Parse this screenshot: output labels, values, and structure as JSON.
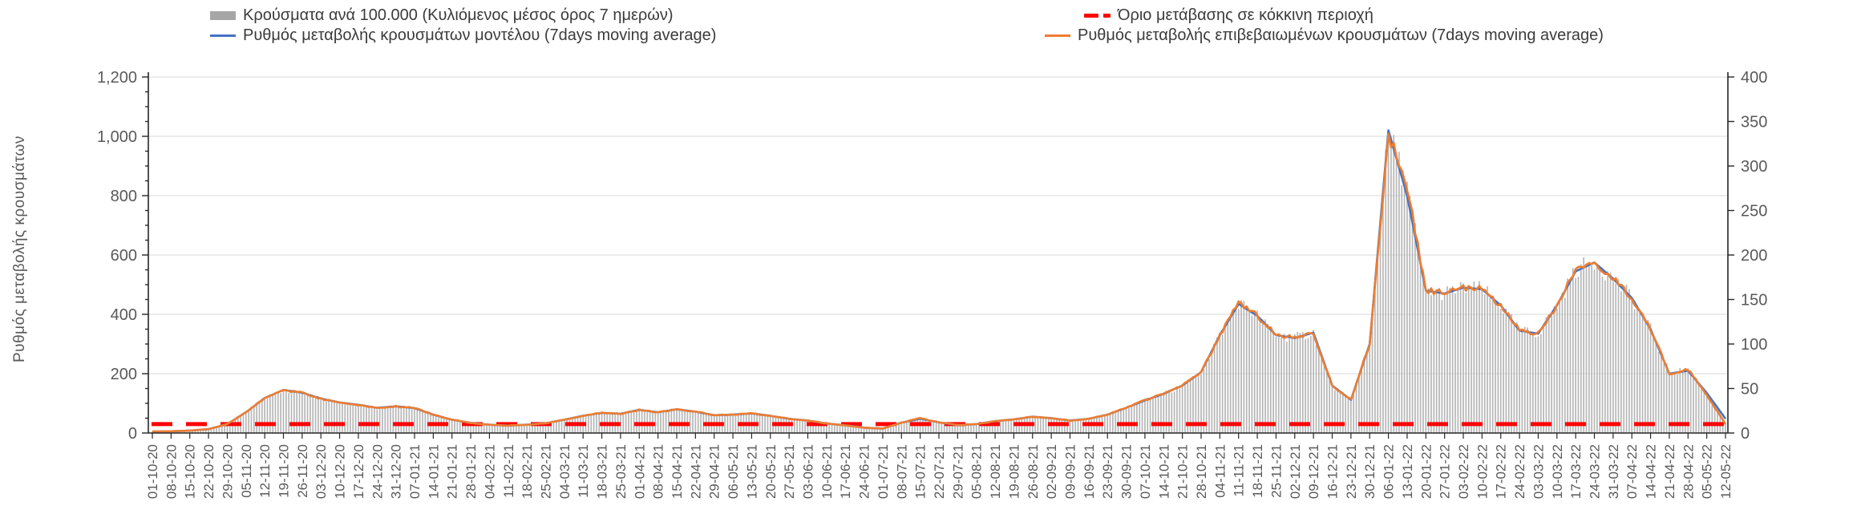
{
  "chart_data": {
    "type": "line",
    "combo": "daily bars + two 7-day moving-average lines + constant threshold line",
    "title": "",
    "grid": "horizontal",
    "legend": {
      "position": "top",
      "rows": 2,
      "columns": 2
    },
    "axes": {
      "left": {
        "title": "Ρυθμός μεταβολής κρουσμάτων",
        "min": 0,
        "max": 1200,
        "step": 200,
        "tick_labels": [
          "0",
          "200",
          "400",
          "600",
          "800",
          "1,000",
          "1,200"
        ]
      },
      "right": {
        "title": "",
        "min": 0,
        "max": 400,
        "step": 50,
        "tick_labels": [
          "0",
          "50",
          "100",
          "150",
          "200",
          "250",
          "300",
          "350",
          "400"
        ]
      },
      "x": {
        "tick_label_rotation_deg": 90,
        "interval": "weekly"
      }
    },
    "x_tick_labels": [
      "01-10-20",
      "08-10-20",
      "15-10-20",
      "22-10-20",
      "29-10-20",
      "05-11-20",
      "12-11-20",
      "19-11-20",
      "26-11-20",
      "03-12-20",
      "10-12-20",
      "17-12-20",
      "24-12-20",
      "31-12-20",
      "07-01-21",
      "14-01-21",
      "21-01-21",
      "28-01-21",
      "04-02-21",
      "11-02-21",
      "18-02-21",
      "25-02-21",
      "04-03-21",
      "11-03-21",
      "18-03-21",
      "25-03-21",
      "01-04-21",
      "08-04-21",
      "15-04-21",
      "22-04-21",
      "29-04-21",
      "06-05-21",
      "13-05-21",
      "20-05-21",
      "27-05-21",
      "03-06-21",
      "10-06-21",
      "17-06-21",
      "24-06-21",
      "01-07-21",
      "08-07-21",
      "15-07-21",
      "22-07-21",
      "29-07-21",
      "05-08-21",
      "12-08-21",
      "19-08-21",
      "26-08-21",
      "02-09-21",
      "09-09-21",
      "16-09-21",
      "23-09-21",
      "30-09-21",
      "07-10-21",
      "14-10-21",
      "21-10-21",
      "28-10-21",
      "04-11-21",
      "11-11-21",
      "18-11-21",
      "25-11-21",
      "02-12-21",
      "09-12-21",
      "16-12-21",
      "23-12-21",
      "30-12-21",
      "06-01-22",
      "13-01-22",
      "20-01-22",
      "27-01-22",
      "03-02-22",
      "10-02-22",
      "17-02-22",
      "24-02-22",
      "03-03-22",
      "10-03-22",
      "17-03-22",
      "24-03-22",
      "31-03-22",
      "07-04-22",
      "14-04-22",
      "21-04-22",
      "28-04-22",
      "05-05-22",
      "12-05-22"
    ],
    "sampling_note": "series values read from the chart at weekly x-tick resolution",
    "series": [
      {
        "name": "Κρούσματα ανά 100.000 (Κυλιόμενος μέσος όρος 7 ημερών)",
        "type": "bar",
        "axis": "right",
        "color": "#a6a6a6",
        "weekly_values": [
          2,
          2,
          3,
          4,
          10,
          23,
          39,
          48,
          45,
          39,
          34,
          32,
          28,
          30,
          28,
          21,
          15,
          11,
          9,
          8,
          9,
          11,
          15,
          19,
          23,
          22,
          26,
          23,
          27,
          24,
          20,
          21,
          22,
          19,
          16,
          14,
          11,
          9,
          6,
          5,
          12,
          17,
          12,
          9,
          10,
          13,
          15,
          18,
          17,
          14,
          16,
          21,
          28,
          37,
          44,
          53,
          68,
          110,
          147,
          132,
          110,
          107,
          113,
          53,
          37,
          100,
          337,
          277,
          160,
          157,
          163,
          162,
          143,
          115,
          112,
          143,
          183,
          193,
          173,
          152,
          117,
          67,
          72,
          43,
          10
        ]
      },
      {
        "name": "Ρυθμός μεταβολής κρουσμάτων μοντέλου (7days moving average)",
        "type": "line",
        "axis": "left",
        "color": "#4472c4",
        "weekly_values": [
          5,
          6,
          8,
          13,
          30,
          70,
          118,
          145,
          136,
          116,
          103,
          95,
          85,
          90,
          84,
          62,
          45,
          34,
          28,
          25,
          28,
          33,
          45,
          58,
          68,
          65,
          78,
          70,
          80,
          72,
          60,
          62,
          66,
          58,
          48,
          42,
          32,
          26,
          18,
          15,
          35,
          48,
          36,
          27,
          30,
          40,
          46,
          55,
          50,
          42,
          48,
          62,
          85,
          110,
          132,
          160,
          205,
          330,
          435,
          395,
          330,
          320,
          338,
          160,
          112,
          300,
          1020,
          800,
          480,
          470,
          490,
          485,
          430,
          345,
          335,
          430,
          545,
          575,
          520,
          455,
          350,
          200,
          210,
          135,
          48
        ]
      },
      {
        "name": "Ρυθμός μεταβολής επιβεβαιωμένων κρουσμάτων (7days moving average)",
        "type": "line",
        "axis": "left",
        "color": "#ed7d31",
        "weekly_values": [
          5,
          6,
          8,
          13,
          30,
          70,
          118,
          145,
          136,
          116,
          103,
          95,
          85,
          90,
          84,
          62,
          45,
          34,
          28,
          25,
          28,
          33,
          45,
          58,
          68,
          65,
          78,
          70,
          80,
          72,
          60,
          62,
          66,
          58,
          48,
          42,
          32,
          26,
          18,
          15,
          35,
          50,
          36,
          27,
          30,
          40,
          46,
          55,
          50,
          42,
          48,
          62,
          85,
          110,
          132,
          160,
          205,
          330,
          440,
          395,
          330,
          320,
          338,
          160,
          112,
          300,
          1010,
          830,
          480,
          470,
          490,
          485,
          430,
          345,
          335,
          430,
          550,
          580,
          520,
          455,
          350,
          200,
          215,
          128,
          30
        ]
      },
      {
        "name": "Όριο μετάβασης σε κόκκινη περιοχή",
        "type": "threshold_line",
        "axis": "right",
        "color": "#ff0000",
        "style": "dashed",
        "value": 10,
        "value_left_axis_equivalent": 30
      }
    ],
    "colors": {
      "bar_fill": "#b6b6b6",
      "gridline": "#d9d9d9",
      "axis_line": "#262626",
      "tick_text": "#595959",
      "legend_text": "#3b3b3b"
    }
  }
}
